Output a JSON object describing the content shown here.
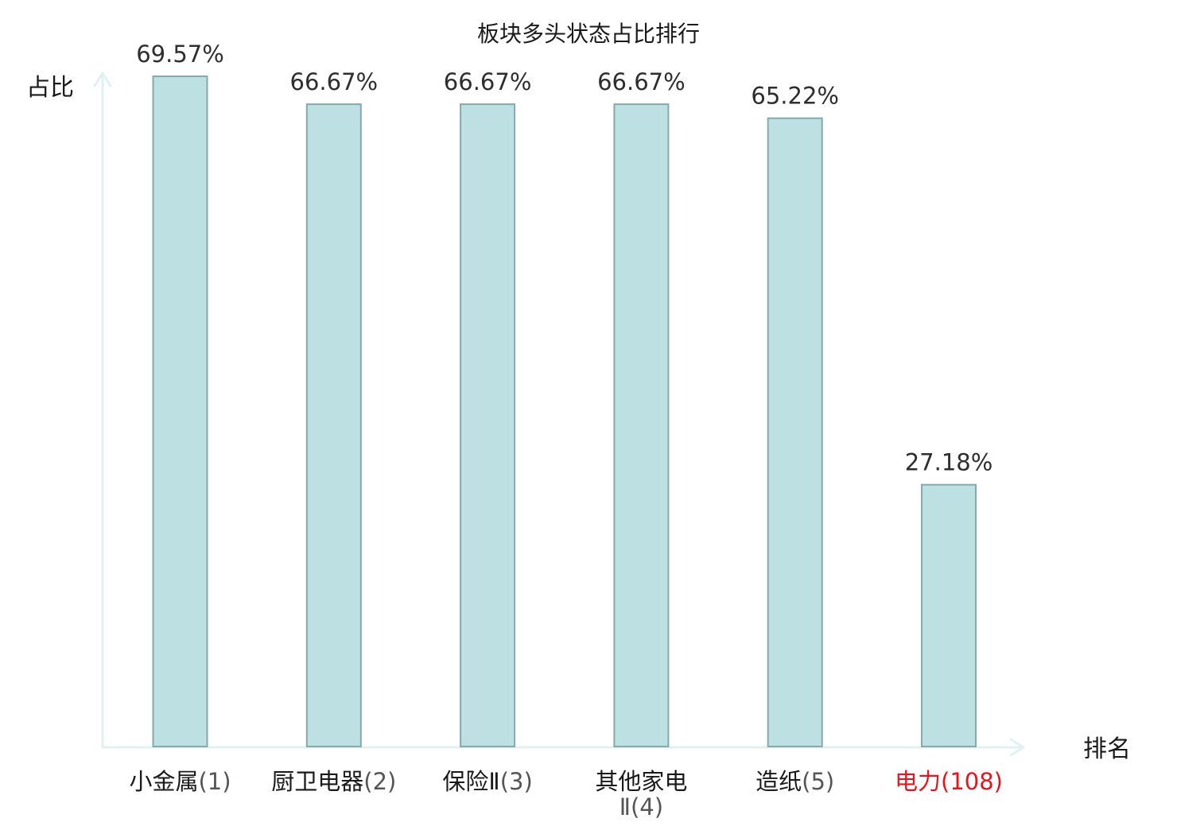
{
  "chart_data": {
    "type": "bar",
    "title": "板块多头状态占比排行",
    "ylabel": "占比",
    "xlabel": "排名",
    "ylim": [
      0,
      69.57
    ],
    "grid": false,
    "categories": [
      {
        "name": "小金属",
        "rank": "(1)"
      },
      {
        "name": "厨卫电器",
        "rank": "(2)"
      },
      {
        "name": "保险Ⅱ",
        "rank": "(3)"
      },
      {
        "name": "其他家电",
        "rank": "Ⅱ(4)",
        "wrapped": true
      },
      {
        "name": "造纸",
        "rank": "(5)"
      },
      {
        "name": "电力",
        "rank": "(108)",
        "highlight": true
      }
    ],
    "values": [
      69.57,
      66.67,
      66.67,
      66.67,
      65.22,
      27.18
    ],
    "value_labels": [
      "69.57%",
      "66.67%",
      "66.67%",
      "66.67%",
      "65.22%",
      "27.18%"
    ]
  },
  "colors": {
    "bar_fill": "#bde0e3",
    "bar_stroke": "#86a9ab",
    "axis": "#e0f2f0",
    "text": "#1a1a1a",
    "rank_text": "#555555",
    "highlight": "#e8141c"
  }
}
